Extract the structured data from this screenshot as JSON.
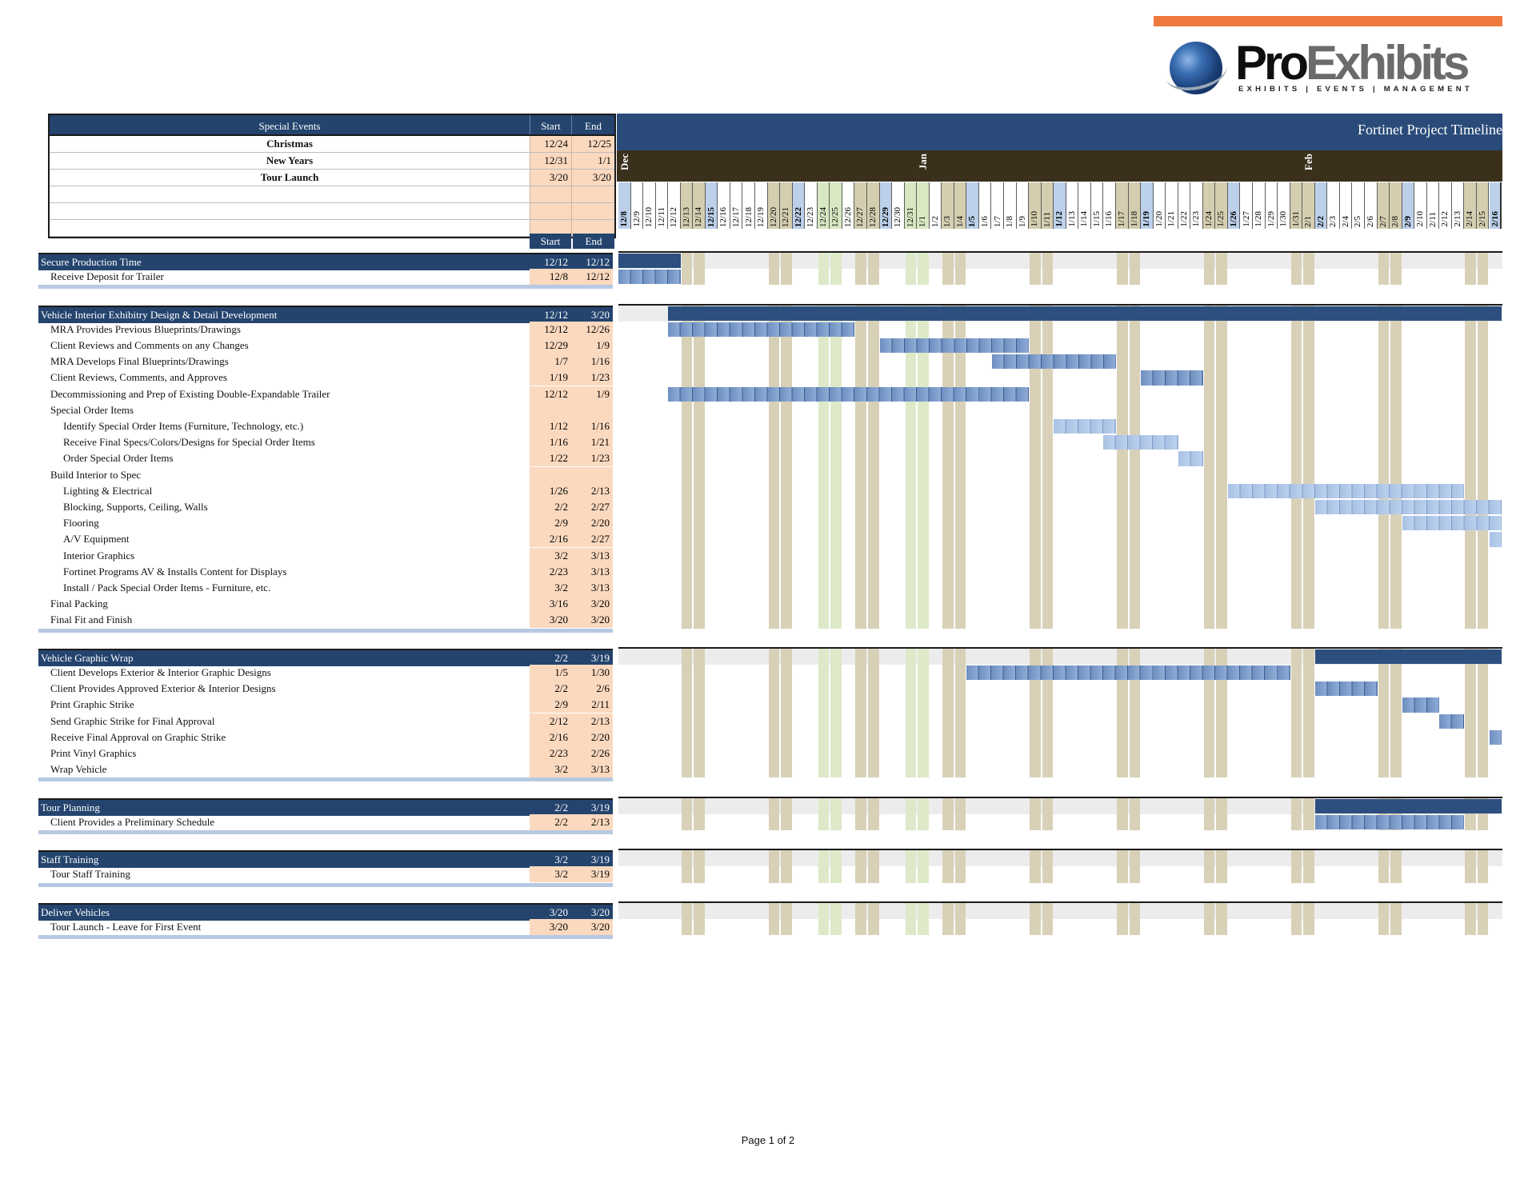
{
  "brand": {
    "name_part1": "Pro",
    "name_part2": "Exhibits",
    "tagline": "EXHIBITS | EVENTS | MANAGEMENT",
    "accent_color": "#ef7a3f",
    "navy": "#24446e"
  },
  "special_events": {
    "header": {
      "name": "Special Events",
      "start": "Start",
      "end": "End"
    },
    "rows": [
      {
        "name": "Christmas",
        "start": "12/24",
        "end": "12/25"
      },
      {
        "name": "New Years",
        "start": "12/31",
        "end": "1/1"
      },
      {
        "name": "Tour Launch",
        "start": "3/20",
        "end": "3/20"
      },
      {
        "name": "",
        "start": "",
        "end": ""
      },
      {
        "name": "",
        "start": "",
        "end": ""
      },
      {
        "name": "",
        "start": "",
        "end": ""
      }
    ]
  },
  "task_columns": {
    "start": "Start",
    "end": "End"
  },
  "gantt": {
    "title": "Fortinet Project Timeline",
    "months": [
      {
        "label": "Dec",
        "day_index": 0
      },
      {
        "label": "Jan",
        "day_index": 24
      },
      {
        "label": "Feb",
        "day_index": 55
      }
    ],
    "days": [
      "12/8",
      "12/9",
      "12/10",
      "12/11",
      "12/12",
      "12/13",
      "12/14",
      "12/15",
      "12/16",
      "12/17",
      "12/18",
      "12/19",
      "12/20",
      "12/21",
      "12/22",
      "12/23",
      "12/24",
      "12/25",
      "12/26",
      "12/27",
      "12/28",
      "12/29",
      "12/30",
      "12/31",
      "1/1",
      "1/2",
      "1/3",
      "1/4",
      "1/5",
      "1/6",
      "1/7",
      "1/8",
      "1/9",
      "1/10",
      "1/11",
      "1/12",
      "1/13",
      "1/14",
      "1/15",
      "1/16",
      "1/17",
      "1/18",
      "1/19",
      "1/20",
      "1/21",
      "1/22",
      "1/23",
      "1/24",
      "1/25",
      "1/26",
      "1/27",
      "1/28",
      "1/29",
      "1/30",
      "1/31",
      "2/1",
      "2/2",
      "2/3",
      "2/4",
      "2/5",
      "2/6",
      "2/7",
      "2/8",
      "2/9",
      "2/10",
      "2/11",
      "2/12",
      "2/13",
      "2/14",
      "2/15",
      "2/16"
    ],
    "day_types": [
      "mon",
      "tue",
      "tue",
      "tue",
      "tue",
      "sat",
      "sun",
      "mon",
      "tue",
      "tue",
      "tue",
      "tue",
      "sat",
      "sun",
      "mon",
      "tue",
      "hol",
      "hol",
      "tue",
      "sat",
      "sun",
      "mon",
      "tue",
      "hol",
      "hol",
      "tue",
      "sat",
      "sun",
      "mon",
      "tue",
      "tue",
      "tue",
      "tue",
      "sat",
      "sun",
      "mon",
      "tue",
      "tue",
      "tue",
      "tue",
      "sat",
      "sun",
      "mon",
      "tue",
      "tue",
      "tue",
      "tue",
      "sat",
      "sun",
      "mon",
      "tue",
      "tue",
      "tue",
      "tue",
      "sat",
      "sun",
      "mon",
      "tue",
      "tue",
      "tue",
      "tue",
      "sat",
      "sun",
      "mon",
      "tue",
      "tue",
      "tue",
      "tue",
      "sat",
      "sun",
      "mon"
    ]
  },
  "sections": [
    {
      "title": "Secure Production Time",
      "start": "12/12",
      "end": "12/12",
      "tasks": [
        {
          "name": "Receive Deposit for Trailer",
          "start": "12/8",
          "end": "12/12",
          "indent": 1,
          "bar": [
            0,
            4
          ]
        }
      ],
      "bar": [
        0,
        4
      ]
    },
    {
      "title": "Vehicle Interior Exhibitry Design & Detail Development",
      "start": "12/12",
      "end": "3/20",
      "bar": [
        4,
        70
      ],
      "tasks": [
        {
          "name": "MRA Provides Previous Blueprints/Drawings",
          "start": "12/12",
          "end": "12/26",
          "indent": 1,
          "bar": [
            4,
            18
          ]
        },
        {
          "name": "Client Reviews and Comments on any Changes",
          "start": "12/29",
          "end": "1/9",
          "indent": 1,
          "bar": [
            21,
            32
          ]
        },
        {
          "name": "MRA Develops Final Blueprints/Drawings",
          "start": "1/7",
          "end": "1/16",
          "indent": 1,
          "bar": [
            30,
            39
          ]
        },
        {
          "name": "Client Reviews, Comments, and Approves",
          "start": "1/19",
          "end": "1/23",
          "indent": 1,
          "bar": [
            42,
            46
          ]
        },
        {
          "name": "Decommissioning and Prep of Existing Double-Expandable Trailer",
          "start": "12/12",
          "end": "1/9",
          "indent": 1,
          "bar": [
            4,
            32
          ]
        },
        {
          "name": "Special Order Items",
          "start": "",
          "end": "",
          "indent": 1
        },
        {
          "name": "Identify Special Order Items (Furniture, Technology, etc.)",
          "start": "1/12",
          "end": "1/16",
          "indent": 2,
          "bar": [
            35,
            39
          ],
          "light": true
        },
        {
          "name": "Receive Final Specs/Colors/Designs for Special Order Items",
          "start": "1/16",
          "end": "1/21",
          "indent": 2,
          "bar": [
            39,
            44
          ],
          "light": true
        },
        {
          "name": "Order Special Order Items",
          "start": "1/22",
          "end": "1/23",
          "indent": 2,
          "bar": [
            45,
            46
          ],
          "light": true
        },
        {
          "name": "Build Interior to Spec",
          "start": "",
          "end": "",
          "indent": 1
        },
        {
          "name": "Lighting & Electrical",
          "start": "1/26",
          "end": "2/13",
          "indent": 2,
          "bar": [
            49,
            67
          ],
          "light": true
        },
        {
          "name": "Blocking, Supports, Ceiling, Walls",
          "start": "2/2",
          "end": "2/27",
          "indent": 2,
          "bar": [
            56,
            70
          ],
          "light": true
        },
        {
          "name": "Flooring",
          "start": "2/9",
          "end": "2/20",
          "indent": 2,
          "bar": [
            63,
            70
          ],
          "light": true
        },
        {
          "name": "A/V Equipment",
          "start": "2/16",
          "end": "2/27",
          "indent": 2,
          "bar": [
            70,
            70
          ],
          "light": true
        },
        {
          "name": "Interior Graphics",
          "start": "3/2",
          "end": "3/13",
          "indent": 2
        },
        {
          "name": "Fortinet Programs AV & Installs Content for Displays",
          "start": "2/23",
          "end": "3/13",
          "indent": 2
        },
        {
          "name": "Install / Pack Special Order Items - Furniture, etc.",
          "start": "3/2",
          "end": "3/13",
          "indent": 2
        },
        {
          "name": "Final Packing",
          "start": "3/16",
          "end": "3/20",
          "indent": 1
        },
        {
          "name": "Final Fit and Finish",
          "start": "3/20",
          "end": "3/20",
          "indent": 1
        }
      ]
    },
    {
      "title": "Vehicle Graphic Wrap",
      "start": "2/2",
      "end": "3/19",
      "bar": [
        56,
        70
      ],
      "tasks": [
        {
          "name": "Client Develops Exterior & Interior Graphic Designs",
          "start": "1/5",
          "end": "1/30",
          "indent": 1,
          "bar": [
            28,
            53
          ]
        },
        {
          "name": "Client Provides Approved Exterior & Interior Designs",
          "start": "2/2",
          "end": "2/6",
          "indent": 1,
          "bar": [
            56,
            60
          ]
        },
        {
          "name": "Print Graphic Strike",
          "start": "2/9",
          "end": "2/11",
          "indent": 1,
          "bar": [
            63,
            65
          ]
        },
        {
          "name": "Send Graphic Strike for Final Approval",
          "start": "2/12",
          "end": "2/13",
          "indent": 1,
          "bar": [
            66,
            67
          ]
        },
        {
          "name": "Receive Final Approval on Graphic Strike",
          "start": "2/16",
          "end": "2/20",
          "indent": 1,
          "bar": [
            70,
            70
          ]
        },
        {
          "name": "Print Vinyl Graphics",
          "start": "2/23",
          "end": "2/26",
          "indent": 1
        },
        {
          "name": "Wrap Vehicle",
          "start": "3/2",
          "end": "3/13",
          "indent": 1
        }
      ]
    },
    {
      "title": "Tour Planning",
      "start": "2/2",
      "end": "3/19",
      "bar": [
        56,
        70
      ],
      "tasks": [
        {
          "name": "Client Provides a Preliminary Schedule",
          "start": "2/2",
          "end": "2/13",
          "indent": 1,
          "bar": [
            56,
            67
          ]
        }
      ]
    },
    {
      "title": "Staff Training",
      "start": "3/2",
      "end": "3/19",
      "tasks": [
        {
          "name": "Tour Staff Training",
          "start": "3/2",
          "end": "3/19",
          "indent": 1
        }
      ]
    },
    {
      "title": "Deliver Vehicles",
      "start": "3/20",
      "end": "3/20",
      "tasks": [
        {
          "name": "Tour Launch - Leave for First Event",
          "start": "3/20",
          "end": "3/20",
          "indent": 1
        }
      ]
    }
  ],
  "footer": "Page 1 of 2"
}
